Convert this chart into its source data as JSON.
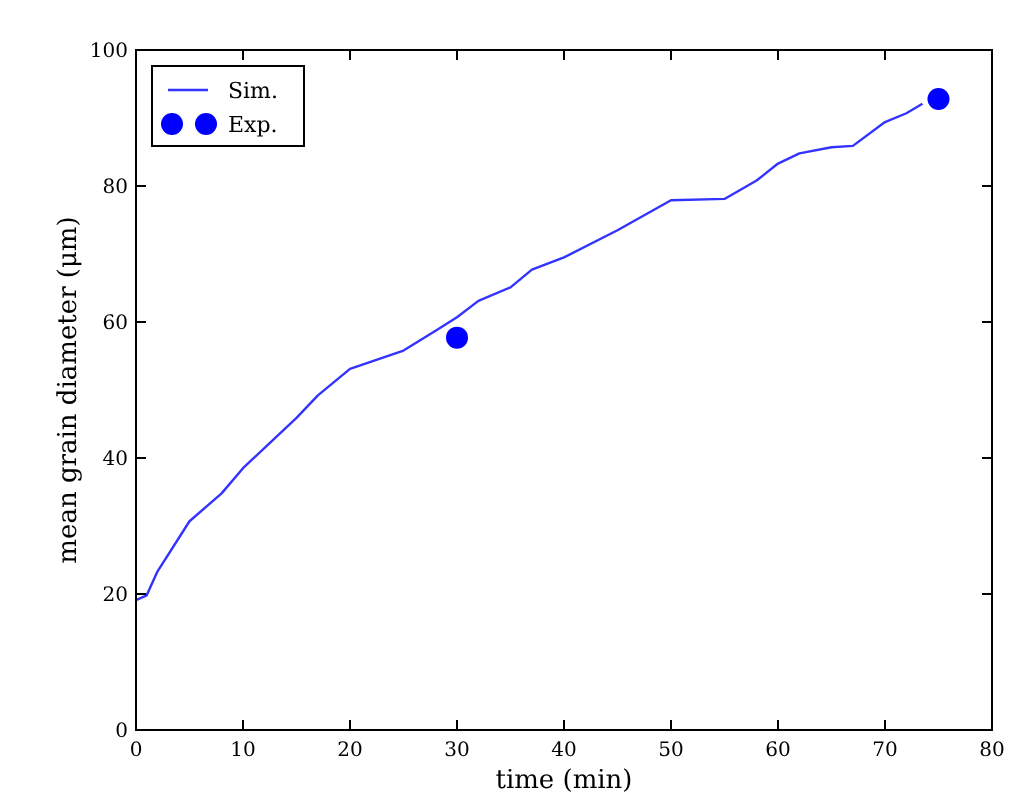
{
  "chart_data": {
    "type": "line",
    "xlabel": "time (min)",
    "ylabel": "mean grain diameter (μm)",
    "xlim": [
      0,
      80
    ],
    "ylim": [
      0,
      100
    ],
    "xticks": [
      0,
      10,
      20,
      30,
      40,
      50,
      60,
      70,
      80
    ],
    "yticks": [
      0,
      20,
      40,
      60,
      80,
      100
    ],
    "grid": false,
    "legend": "top left",
    "series": [
      {
        "name": "Sim.",
        "color": "#3333ff",
        "x": [
          0,
          1,
          2,
          5,
          8,
          10,
          15,
          17,
          20,
          25,
          28,
          30,
          32,
          35,
          37,
          40,
          45,
          50,
          55,
          58,
          60,
          62,
          65,
          67,
          70,
          72,
          73.5
        ],
        "values": [
          19.1,
          19.8,
          23.3,
          30.7,
          34.8,
          38.5,
          45.9,
          49.2,
          53.1,
          55.8,
          58.7,
          60.7,
          63.1,
          65.1,
          67.7,
          69.5,
          73.5,
          77.9,
          78.1,
          80.8,
          83.3,
          84.8,
          85.7,
          85.9,
          89.4,
          90.7,
          92.1
        ]
      },
      {
        "name": "Exp.",
        "type": "scatter",
        "color": "#0000ff",
        "marker": "circle",
        "x": [
          30,
          75
        ],
        "values": [
          57.7,
          92.8
        ]
      }
    ]
  }
}
